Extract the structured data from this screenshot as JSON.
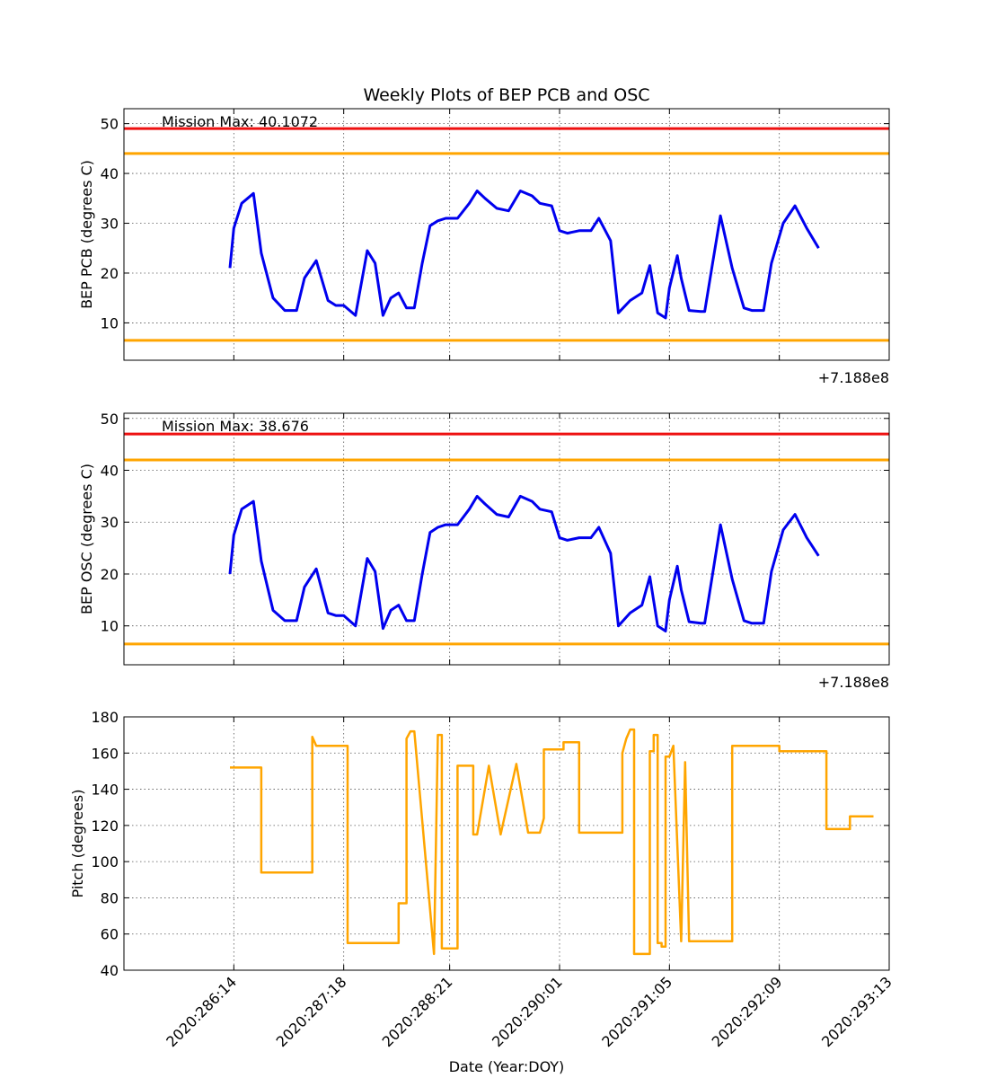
{
  "chart_data": [
    {
      "type": "line",
      "title": "Weekly Plots of BEP PCB and OSC",
      "ylabel": "BEP PCB (degrees C)",
      "offset_text": "+7.188e8",
      "annotation": "Mission Max: 40.1072",
      "ylim": [
        2.5,
        53
      ],
      "yticks": [
        10,
        20,
        30,
        40,
        50
      ],
      "grid": true,
      "limit_lines": [
        {
          "y": 49.0,
          "color": "#ee1111"
        },
        {
          "y": 44.0,
          "color": "#ffa500"
        },
        {
          "y": 6.5,
          "color": "#ffa500"
        }
      ],
      "series": [
        {
          "color": "#0000ee",
          "x": [
            "2020:286:13",
            "2020:286:14",
            "2020:286:16",
            "2020:286:19",
            "2020:286:21",
            "2020:287:00",
            "2020:287:03",
            "2020:287:06",
            "2020:287:08",
            "2020:287:11",
            "2020:287:14",
            "2020:287:16",
            "2020:287:18",
            "2020:287:21",
            "2020:288:00",
            "2020:288:02",
            "2020:288:04",
            "2020:288:06",
            "2020:288:08",
            "2020:288:10",
            "2020:288:12",
            "2020:288:14",
            "2020:288:16",
            "2020:288:18",
            "2020:288:20",
            "2020:288:23",
            "2020:289:02",
            "2020:289:04",
            "2020:289:06",
            "2020:289:09",
            "2020:289:12",
            "2020:289:15",
            "2020:289:18",
            "2020:289:20",
            "2020:289:23",
            "2020:290:01",
            "2020:290:03",
            "2020:290:06",
            "2020:290:09",
            "2020:290:11",
            "2020:290:14",
            "2020:290:16",
            "2020:290:19",
            "2020:290:22",
            "2020:291:00",
            "2020:291:02",
            "2020:291:04",
            "2020:291:05",
            "2020:291:07",
            "2020:291:08",
            "2020:291:10",
            "2020:291:13",
            "2020:291:14",
            "2020:291:16",
            "2020:291:18",
            "2020:291:21",
            "2020:292:00",
            "2020:292:02",
            "2020:292:05",
            "2020:292:07",
            "2020:292:10",
            "2020:292:13",
            "2020:292:16",
            "2020:292:19"
          ],
          "y": [
            21.0,
            29.0,
            34.0,
            36.0,
            24.0,
            15.0,
            12.5,
            12.5,
            19.0,
            22.5,
            14.5,
            13.5,
            13.5,
            11.5,
            24.5,
            22.0,
            11.5,
            15.0,
            16.0,
            13.0,
            13.0,
            22.0,
            29.5,
            30.5,
            31.0,
            31.0,
            34.0,
            36.5,
            35.0,
            33.0,
            32.5,
            36.5,
            35.5,
            34.0,
            33.5,
            28.5,
            28.0,
            28.5,
            28.5,
            31.0,
            26.5,
            12.0,
            14.5,
            16.0,
            21.5,
            12.0,
            11.0,
            17.0,
            23.5,
            19.0,
            12.5,
            12.3,
            12.3,
            22.0,
            31.5,
            21.0,
            13.0,
            12.5,
            12.5,
            22.0,
            30.0,
            33.5,
            29.0,
            25.0
          ]
        }
      ]
    },
    {
      "type": "line",
      "ylabel": "BEP OSC (degrees C)",
      "offset_text": "+7.188e8",
      "annotation": "Mission Max: 38.676",
      "ylim": [
        2.5,
        51
      ],
      "yticks": [
        10,
        20,
        30,
        40,
        50
      ],
      "grid": true,
      "limit_lines": [
        {
          "y": 47.0,
          "color": "#ee1111"
        },
        {
          "y": 42.0,
          "color": "#ffa500"
        },
        {
          "y": 6.5,
          "color": "#ffa500"
        }
      ],
      "series": [
        {
          "color": "#0000ee",
          "x": [
            "2020:286:13",
            "2020:286:14",
            "2020:286:16",
            "2020:286:19",
            "2020:286:21",
            "2020:287:00",
            "2020:287:03",
            "2020:287:06",
            "2020:287:08",
            "2020:287:11",
            "2020:287:14",
            "2020:287:16",
            "2020:287:18",
            "2020:287:21",
            "2020:288:00",
            "2020:288:02",
            "2020:288:04",
            "2020:288:06",
            "2020:288:08",
            "2020:288:10",
            "2020:288:12",
            "2020:288:14",
            "2020:288:16",
            "2020:288:18",
            "2020:288:20",
            "2020:288:23",
            "2020:289:02",
            "2020:289:04",
            "2020:289:06",
            "2020:289:09",
            "2020:289:12",
            "2020:289:15",
            "2020:289:18",
            "2020:289:20",
            "2020:289:23",
            "2020:290:01",
            "2020:290:03",
            "2020:290:06",
            "2020:290:09",
            "2020:290:11",
            "2020:290:14",
            "2020:290:16",
            "2020:290:19",
            "2020:290:22",
            "2020:291:00",
            "2020:291:02",
            "2020:291:04",
            "2020:291:05",
            "2020:291:07",
            "2020:291:08",
            "2020:291:10",
            "2020:291:13",
            "2020:291:14",
            "2020:291:16",
            "2020:291:18",
            "2020:291:21",
            "2020:292:00",
            "2020:292:02",
            "2020:292:05",
            "2020:292:07",
            "2020:292:10",
            "2020:292:13",
            "2020:292:16",
            "2020:292:19"
          ],
          "y": [
            20.0,
            27.5,
            32.5,
            34.0,
            22.5,
            13.0,
            11.0,
            11.0,
            17.5,
            21.0,
            12.5,
            12.0,
            12.0,
            10.0,
            23.0,
            20.5,
            9.5,
            13.0,
            14.0,
            11.0,
            11.0,
            20.0,
            28.0,
            29.0,
            29.5,
            29.5,
            32.5,
            35.0,
            33.5,
            31.5,
            31.0,
            35.0,
            34.0,
            32.5,
            32.0,
            27.0,
            26.5,
            27.0,
            27.0,
            29.0,
            24.0,
            10.0,
            12.5,
            14.0,
            19.5,
            10.0,
            9.0,
            15.0,
            21.5,
            17.0,
            10.8,
            10.5,
            10.5,
            20.0,
            29.5,
            19.0,
            11.0,
            10.5,
            10.5,
            20.5,
            28.5,
            31.5,
            27.0,
            23.5
          ]
        }
      ]
    },
    {
      "type": "line",
      "ylabel": "Pitch (degrees)",
      "xlabel": "Date (Year:DOY)",
      "ylim": [
        40,
        180
      ],
      "yticks": [
        40,
        60,
        80,
        100,
        120,
        140,
        160,
        180
      ],
      "xticks": [
        "2020:286:14",
        "2020:287:18",
        "2020:288:21",
        "2020:290:01",
        "2020:291:05",
        "2020:292:09",
        "2020:293:13"
      ],
      "grid": true,
      "series": [
        {
          "color": "#ffa500",
          "x": [
            "2020:286:13",
            "2020:286:21",
            "2020:286:21",
            "2020:287:10",
            "2020:287:10",
            "2020:287:11",
            "2020:287:19",
            "2020:287:19",
            "2020:288:08",
            "2020:288:08",
            "2020:288:10",
            "2020:288:10",
            "2020:288:11",
            "2020:288:12",
            "2020:288:17",
            "2020:288:17",
            "2020:288:18",
            "2020:288:19",
            "2020:288:19",
            "2020:288:23",
            "2020:288:23",
            "2020:289:03",
            "2020:289:03",
            "2020:289:04",
            "2020:289:07",
            "2020:289:07",
            "2020:289:10",
            "2020:289:10",
            "2020:289:14",
            "2020:289:14",
            "2020:289:17",
            "2020:289:17",
            "2020:289:20",
            "2020:289:21",
            "2020:289:21",
            "2020:290:02",
            "2020:290:02",
            "2020:290:06",
            "2020:290:06",
            "2020:290:07",
            "2020:290:07",
            "2020:290:17",
            "2020:290:17",
            "2020:290:18",
            "2020:290:19",
            "2020:290:20",
            "2020:290:20",
            "2020:291:00",
            "2020:291:00",
            "2020:291:01",
            "2020:291:01",
            "2020:291:02",
            "2020:291:02",
            "2020:291:03",
            "2020:291:03",
            "2020:291:04",
            "2020:291:04",
            "2020:291:05",
            "2020:291:06",
            "2020:291:06",
            "2020:291:08",
            "2020:291:08",
            "2020:291:09",
            "2020:291:09",
            "2020:291:10",
            "2020:291:10",
            "2020:291:21",
            "2020:291:21",
            "2020:292:09",
            "2020:292:09",
            "2020:292:10",
            "2020:292:21",
            "2020:292:21",
            "2020:293:03",
            "2020:293:03",
            "2020:293:09"
          ],
          "y": [
            152,
            152,
            94,
            94,
            169,
            164,
            164,
            55,
            55,
            77,
            77,
            168,
            172,
            172,
            49,
            49,
            170,
            170,
            52,
            52,
            153,
            153,
            115,
            115,
            153,
            153,
            115,
            115,
            154,
            154,
            116,
            116,
            116,
            124,
            162,
            162,
            166,
            166,
            116,
            116,
            116,
            116,
            160,
            168,
            173,
            173,
            49,
            49,
            161,
            161,
            170,
            170,
            55,
            55,
            53,
            53,
            158,
            158,
            164,
            164,
            56,
            56,
            155,
            155,
            56,
            56,
            56,
            164,
            164,
            161,
            161,
            161,
            118,
            118,
            125,
            125
          ]
        }
      ]
    }
  ]
}
